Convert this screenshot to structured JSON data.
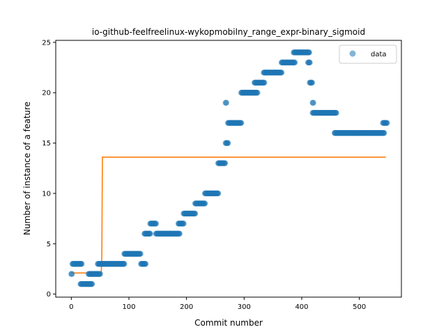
{
  "chart_data": {
    "type": "scatter",
    "title": "io-github-feelfreelinux-wykopmobilny_range_expr-binary_sigmoid",
    "xlabel": "Commit number",
    "ylabel": "Number of instance of a feature",
    "xlim": [
      -27,
      573
    ],
    "ylim": [
      -0.3,
      25.2
    ],
    "xticks": [
      0,
      100,
      200,
      300,
      400,
      500
    ],
    "yticks": [
      0,
      5,
      10,
      15,
      20,
      25
    ],
    "legend": {
      "position": "top-right",
      "label": "data"
    },
    "colors": {
      "points": "#1f77b4",
      "fit": "#ff7f0e"
    },
    "data_runs": [
      {
        "x0": 0,
        "x1": 1,
        "y": 2
      },
      {
        "x0": 2,
        "x1": 18,
        "y": 3
      },
      {
        "x0": 16,
        "x1": 36,
        "y": 1
      },
      {
        "x0": 30,
        "x1": 50,
        "y": 2
      },
      {
        "x0": 46,
        "x1": 92,
        "y": 3
      },
      {
        "x0": 92,
        "x1": 120,
        "y": 4
      },
      {
        "x0": 121,
        "x1": 129,
        "y": 3
      },
      {
        "x0": 127,
        "x1": 137,
        "y": 6
      },
      {
        "x0": 137,
        "x1": 147,
        "y": 7
      },
      {
        "x0": 147,
        "x1": 188,
        "y": 6
      },
      {
        "x0": 186,
        "x1": 195,
        "y": 7
      },
      {
        "x0": 195,
        "x1": 215,
        "y": 8
      },
      {
        "x0": 215,
        "x1": 232,
        "y": 9
      },
      {
        "x0": 232,
        "x1": 255,
        "y": 10
      },
      {
        "x0": 255,
        "x1": 267,
        "y": 13
      },
      {
        "x0": 268,
        "x1": 269,
        "y": 19
      },
      {
        "x0": 268,
        "x1": 272,
        "y": 15
      },
      {
        "x0": 272,
        "x1": 295,
        "y": 17
      },
      {
        "x0": 295,
        "x1": 323,
        "y": 20
      },
      {
        "x0": 318,
        "x1": 335,
        "y": 21
      },
      {
        "x0": 334,
        "x1": 365,
        "y": 22
      },
      {
        "x0": 365,
        "x1": 388,
        "y": 23
      },
      {
        "x0": 386,
        "x1": 413,
        "y": 24
      },
      {
        "x0": 411,
        "x1": 414,
        "y": 23
      },
      {
        "x0": 414,
        "x1": 418,
        "y": 21
      },
      {
        "x0": 419,
        "x1": 420,
        "y": 19
      },
      {
        "x0": 419,
        "x1": 460,
        "y": 18
      },
      {
        "x0": 457,
        "x1": 543,
        "y": 16
      },
      {
        "x0": 541,
        "x1": 548,
        "y": 17
      }
    ],
    "fit_line": {
      "x": [
        0,
        52,
        53,
        54,
        546
      ],
      "y": [
        2.1,
        2.1,
        4,
        13.6,
        13.6
      ]
    }
  }
}
